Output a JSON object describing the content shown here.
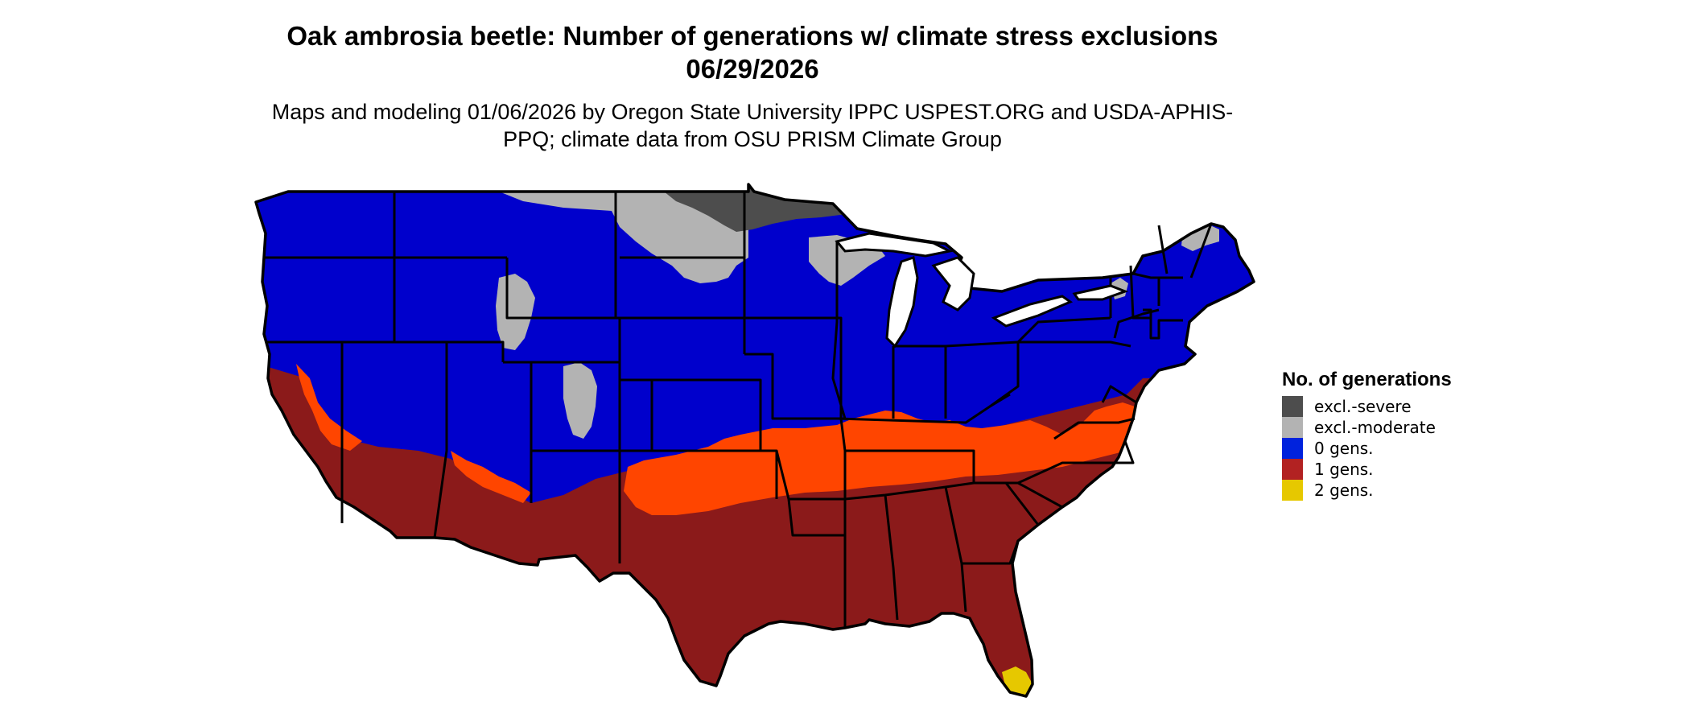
{
  "title": "Oak ambrosia beetle: Number of generations w/ climate stress exclusions 06/29/2026",
  "subtitle": "Maps and modeling 01/06/2026 by Oregon State University IPPC USPEST.ORG and USDA-APHIS-PPQ; climate data from OSU PRISM Climate Group",
  "legend": {
    "title": "No. of generations",
    "items": [
      {
        "label": "excl.-severe",
        "color": "#4d4d4d"
      },
      {
        "label": "excl.-moderate",
        "color": "#b3b3b3"
      },
      {
        "label": "0 gens.",
        "color": "#0000cc"
      },
      {
        "label": "1 gens.",
        "color": "#8b1a1a"
      },
      {
        "label": "2 gens.",
        "color": "#e6c800"
      }
    ]
  },
  "colors": {
    "severe": "#4d4d4d",
    "moderate": "#b3b3b3",
    "zero": "#0000cc",
    "one": "#8b1a1a",
    "one_transition": "#ff4500",
    "two": "#e6c800",
    "borders": "#000000"
  }
}
